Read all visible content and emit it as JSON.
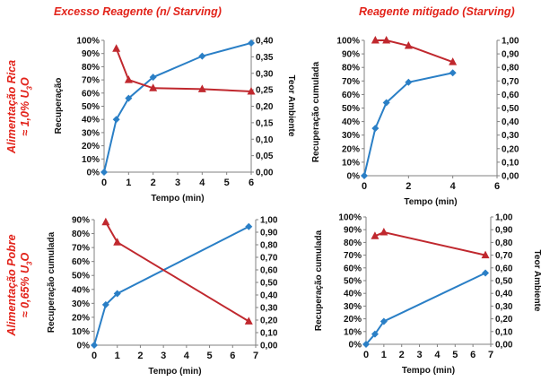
{
  "column_titles": [
    "Excesso Reagente (n/ Starving)",
    "Reagente mitigado (Starving)"
  ],
  "row_labels": [
    {
      "line1": "Alimentação Rica",
      "line2_pre": "≈ 1,0% U",
      "sub": "3",
      "line2_post": "O"
    },
    {
      "line1": "Alimentação Pobre",
      "line2_pre": "≈ 0,65% U",
      "sub": "3",
      "line2_post": "O"
    }
  ],
  "colors": {
    "title": "#e2231a",
    "recovery": "#2a7fc6",
    "ambient": "#c0282e",
    "axis": "#808080"
  },
  "chart_data": [
    {
      "type": "line",
      "xlabel": "Tempo (min)",
      "ylabel_left": "Recuperação",
      "ylabel_right": "Teor Ambiente",
      "xlim": [
        0,
        6
      ],
      "xticks": [
        "0",
        "1",
        "2",
        "3",
        "4",
        "5",
        "6"
      ],
      "ylim_left": [
        0,
        1
      ],
      "yticks_left": [
        "0%",
        "10%",
        "20%",
        "30%",
        "40%",
        "50%",
        "60%",
        "70%",
        "80%",
        "90%",
        "100%"
      ],
      "ylim_right": [
        0,
        0.4
      ],
      "yticks_right": [
        "0,00",
        "0,05",
        "0,10",
        "0,15",
        "0,20",
        "0,25",
        "0,30",
        "0,35",
        "0,40"
      ],
      "series": [
        {
          "axis": "left",
          "marker": "diamond",
          "x": [
            0,
            0.5,
            1,
            2,
            4,
            6
          ],
          "y": [
            0,
            0.4,
            0.56,
            0.72,
            0.88,
            0.98
          ]
        },
        {
          "axis": "right",
          "marker": "triangle",
          "x": [
            0.5,
            1,
            2,
            4,
            6
          ],
          "y": [
            0.375,
            0.28,
            0.255,
            0.252,
            0.245
          ]
        }
      ]
    },
    {
      "type": "line",
      "xlabel": "Tempo (min)",
      "ylabel_left": "Recuperação cumulada",
      "ylabel_right": "",
      "xlim": [
        0,
        6
      ],
      "xticks": [
        "0",
        "2",
        "4",
        "6"
      ],
      "ylim_left": [
        0,
        1
      ],
      "yticks_left": [
        "0%",
        "10%",
        "20%",
        "30%",
        "40%",
        "50%",
        "60%",
        "70%",
        "80%",
        "90%",
        "100%"
      ],
      "ylim_right": [
        0,
        1
      ],
      "yticks_right": [
        "0,00",
        "0,10",
        "0,20",
        "0,30",
        "0,40",
        "0,50",
        "0,60",
        "0,70",
        "0,80",
        "0,90",
        "1,00"
      ],
      "series": [
        {
          "axis": "left",
          "marker": "diamond",
          "x": [
            0,
            0.5,
            1,
            2,
            4
          ],
          "y": [
            0,
            0.35,
            0.54,
            0.69,
            0.76
          ]
        },
        {
          "axis": "right",
          "marker": "triangle",
          "x": [
            0.5,
            1,
            2,
            4
          ],
          "y": [
            1.0,
            1.0,
            0.96,
            0.84
          ]
        }
      ]
    },
    {
      "type": "line",
      "xlabel": "Tempo (min)",
      "ylabel_left": "Recuperação cumulada",
      "ylabel_right": "",
      "xlim": [
        0,
        7
      ],
      "xticks": [
        "0",
        "1",
        "2",
        "3",
        "4",
        "5",
        "6",
        "7"
      ],
      "ylim_left": [
        0,
        0.9
      ],
      "yticks_left": [
        "0%",
        "10%",
        "20%",
        "30%",
        "40%",
        "50%",
        "60%",
        "70%",
        "80%",
        "90%"
      ],
      "ylim_right": [
        0,
        1
      ],
      "yticks_right": [
        "0,00",
        "0,10",
        "0,20",
        "0,30",
        "0,40",
        "0,50",
        "0,60",
        "0,70",
        "0,80",
        "0,90",
        "1,00"
      ],
      "series": [
        {
          "axis": "left",
          "marker": "diamond",
          "x": [
            0,
            0.5,
            1,
            6.7
          ],
          "y": [
            0,
            0.29,
            0.37,
            0.85
          ]
        },
        {
          "axis": "right",
          "marker": "triangle",
          "x": [
            0.5,
            1,
            6.7
          ],
          "y": [
            0.98,
            0.82,
            0.19
          ]
        }
      ]
    },
    {
      "type": "line",
      "xlabel": "Tempo (min)",
      "ylabel_left": "Recuperação cumulada",
      "ylabel_right": "Teor Ambiente",
      "xlim": [
        0,
        7
      ],
      "xticks": [
        "0",
        "1",
        "2",
        "3",
        "4",
        "5",
        "6",
        "7"
      ],
      "ylim_left": [
        0,
        1
      ],
      "yticks_left": [
        "0%",
        "10%",
        "20%",
        "30%",
        "40%",
        "50%",
        "60%",
        "70%",
        "80%",
        "90%",
        "100%"
      ],
      "ylim_right": [
        0,
        1
      ],
      "yticks_right": [
        "0,00",
        "0,10",
        "0,20",
        "0,30",
        "0,40",
        "0,50",
        "0,60",
        "0,70",
        "0,80",
        "0,90",
        "1,00"
      ],
      "series": [
        {
          "axis": "left",
          "marker": "diamond",
          "x": [
            0,
            0.5,
            1,
            6.7
          ],
          "y": [
            0,
            0.08,
            0.18,
            0.56
          ]
        },
        {
          "axis": "right",
          "marker": "triangle",
          "x": [
            0.5,
            1,
            6.7
          ],
          "y": [
            0.85,
            0.88,
            0.7
          ]
        }
      ]
    }
  ]
}
